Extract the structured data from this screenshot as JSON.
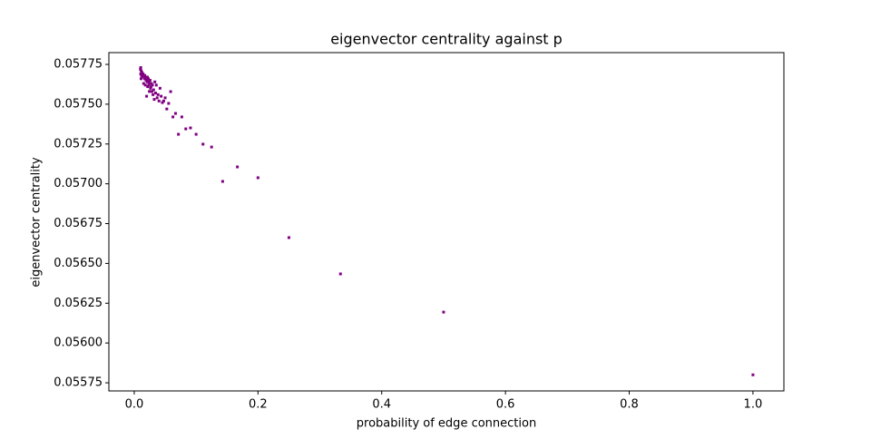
{
  "chart_data": {
    "type": "scatter",
    "title": "eigenvector centrality against p",
    "x_label": "probability of edge connection",
    "y_label": "eigenvector centrality",
    "color": "#800080",
    "x": [
      1.0,
      0.5,
      0.3333,
      0.25,
      0.2,
      0.1667,
      0.1429,
      0.125,
      0.1111,
      0.1,
      0.0909,
      0.0833,
      0.0769,
      0.0714,
      0.0667,
      0.0625,
      0.0588,
      0.0556,
      0.0526,
      0.05,
      0.0476,
      0.0455,
      0.0435,
      0.0417,
      0.04,
      0.0385,
      0.037,
      0.0357,
      0.0345,
      0.0333,
      0.0323,
      0.0313,
      0.0303,
      0.0294,
      0.0286,
      0.0278,
      0.027,
      0.0263,
      0.0256,
      0.025,
      0.0244,
      0.0238,
      0.0233,
      0.0227,
      0.0222,
      0.0217,
      0.0213,
      0.0208,
      0.0204,
      0.02,
      0.0192,
      0.0185,
      0.0179,
      0.0172,
      0.0167,
      0.0159,
      0.0152,
      0.0143,
      0.0133,
      0.0125,
      0.0118,
      0.0111,
      0.0105,
      0.01,
      0.0105,
      0.011
    ],
    "values": [
      0.0558,
      0.056194,
      0.056434,
      0.056662,
      0.057038,
      0.057106,
      0.057015,
      0.057231,
      0.057249,
      0.057311,
      0.057351,
      0.057345,
      0.05742,
      0.057311,
      0.057442,
      0.05742,
      0.057579,
      0.057505,
      0.05747,
      0.05754,
      0.05752,
      0.05751,
      0.05755,
      0.0576,
      0.05752,
      0.05756,
      0.05754,
      0.05762,
      0.05757,
      0.05764,
      0.05753,
      0.05759,
      0.05756,
      0.05762,
      0.05758,
      0.05763,
      0.05761,
      0.0576,
      0.05765,
      0.05763,
      0.05758,
      0.05764,
      0.05762,
      0.05766,
      0.05765,
      0.05761,
      0.05767,
      0.05764,
      0.05766,
      0.05755,
      0.05765,
      0.05767,
      0.05762,
      0.05768,
      0.05766,
      0.05768,
      0.05763,
      0.05769,
      0.05767,
      0.0577,
      0.05768,
      0.05771,
      0.05769,
      0.05772,
      0.05773,
      0.05766
    ],
    "xlim": [
      -0.041,
      1.05
    ],
    "ylim": [
      0.055699,
      0.057824
    ],
    "xticks": [
      {
        "value": 0,
        "label": "0.0"
      },
      0.2,
      0.4,
      0.6,
      0.8,
      {
        "value": 1,
        "label": "1.0"
      }
    ],
    "yticks": [
      0.05575,
      {
        "value": 0.056,
        "label": "0.05600"
      },
      0.05625,
      {
        "value": 0.0565,
        "label": "0.05650"
      },
      0.05675,
      {
        "value": 0.057,
        "label": "0.05700"
      },
      0.05725,
      {
        "value": 0.0575,
        "label": "0.05750"
      },
      0.05775
    ],
    "grid": false
  }
}
